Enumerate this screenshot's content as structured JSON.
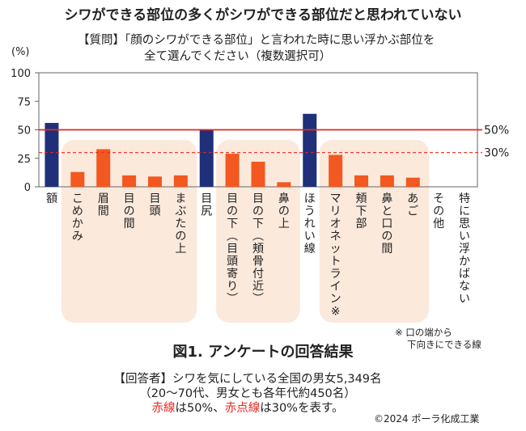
{
  "page": {
    "title": "シワができる部位の多くがシワができる部位だと思われていない",
    "question_tag": "【質問】",
    "question_line1": "「顔のシワができる部位」と言われた時に思い浮かぶ部位を",
    "question_line2": "全て選んでください（複数選択可）",
    "caption": "図1. アンケートの回答結果",
    "note_line1": "※ 口の端から",
    "note_line2": "下向きにできる線",
    "respondent_line1": "【回答者】シワを気にしている全国の男女5,349名",
    "respondent_line2": "（20～70代、男女とも各年代約450名）",
    "respondent_line3_a": "赤線",
    "respondent_line3_b": "は50%、",
    "respondent_line3_c": "赤点線",
    "respondent_line3_d": "は30%を表す。",
    "copyright": "©2024 ポーラ化成工業"
  },
  "chart_data": {
    "type": "bar",
    "ylabel": "(%)",
    "ylim": [
      0,
      100
    ],
    "yticks": [
      0,
      25,
      50,
      75,
      100
    ],
    "categories": [
      "額",
      "こめかみ",
      "眉間",
      "目の間",
      "目頭",
      "まぶたの上",
      "目尻",
      "目の下（目頭寄り）",
      "目の下（頬骨付近）",
      "鼻の上",
      "ほうれい線",
      "マリオネットライン※",
      "頬下部",
      "鼻と口の間",
      "あご",
      "その他",
      "特に思い浮かばない"
    ],
    "values": [
      56,
      13,
      33,
      10,
      9,
      10,
      50,
      29,
      22,
      4,
      64,
      28,
      10,
      10,
      8,
      0,
      0
    ],
    "highlight": [
      true,
      false,
      false,
      false,
      false,
      false,
      true,
      false,
      false,
      false,
      true,
      false,
      false,
      false,
      false,
      false,
      false
    ],
    "colors": {
      "highlight": "#1f2f7a",
      "normal": "#f2581f",
      "shade": "#fbe9dc",
      "refline": "#e8271c"
    },
    "ref_lines": [
      {
        "value": 50,
        "label": "50%",
        "style": "solid"
      },
      {
        "value": 30,
        "label": "30%",
        "style": "dashed"
      }
    ],
    "shaded_groups": [
      [
        1,
        5
      ],
      [
        7,
        9
      ],
      [
        11,
        14
      ]
    ]
  }
}
